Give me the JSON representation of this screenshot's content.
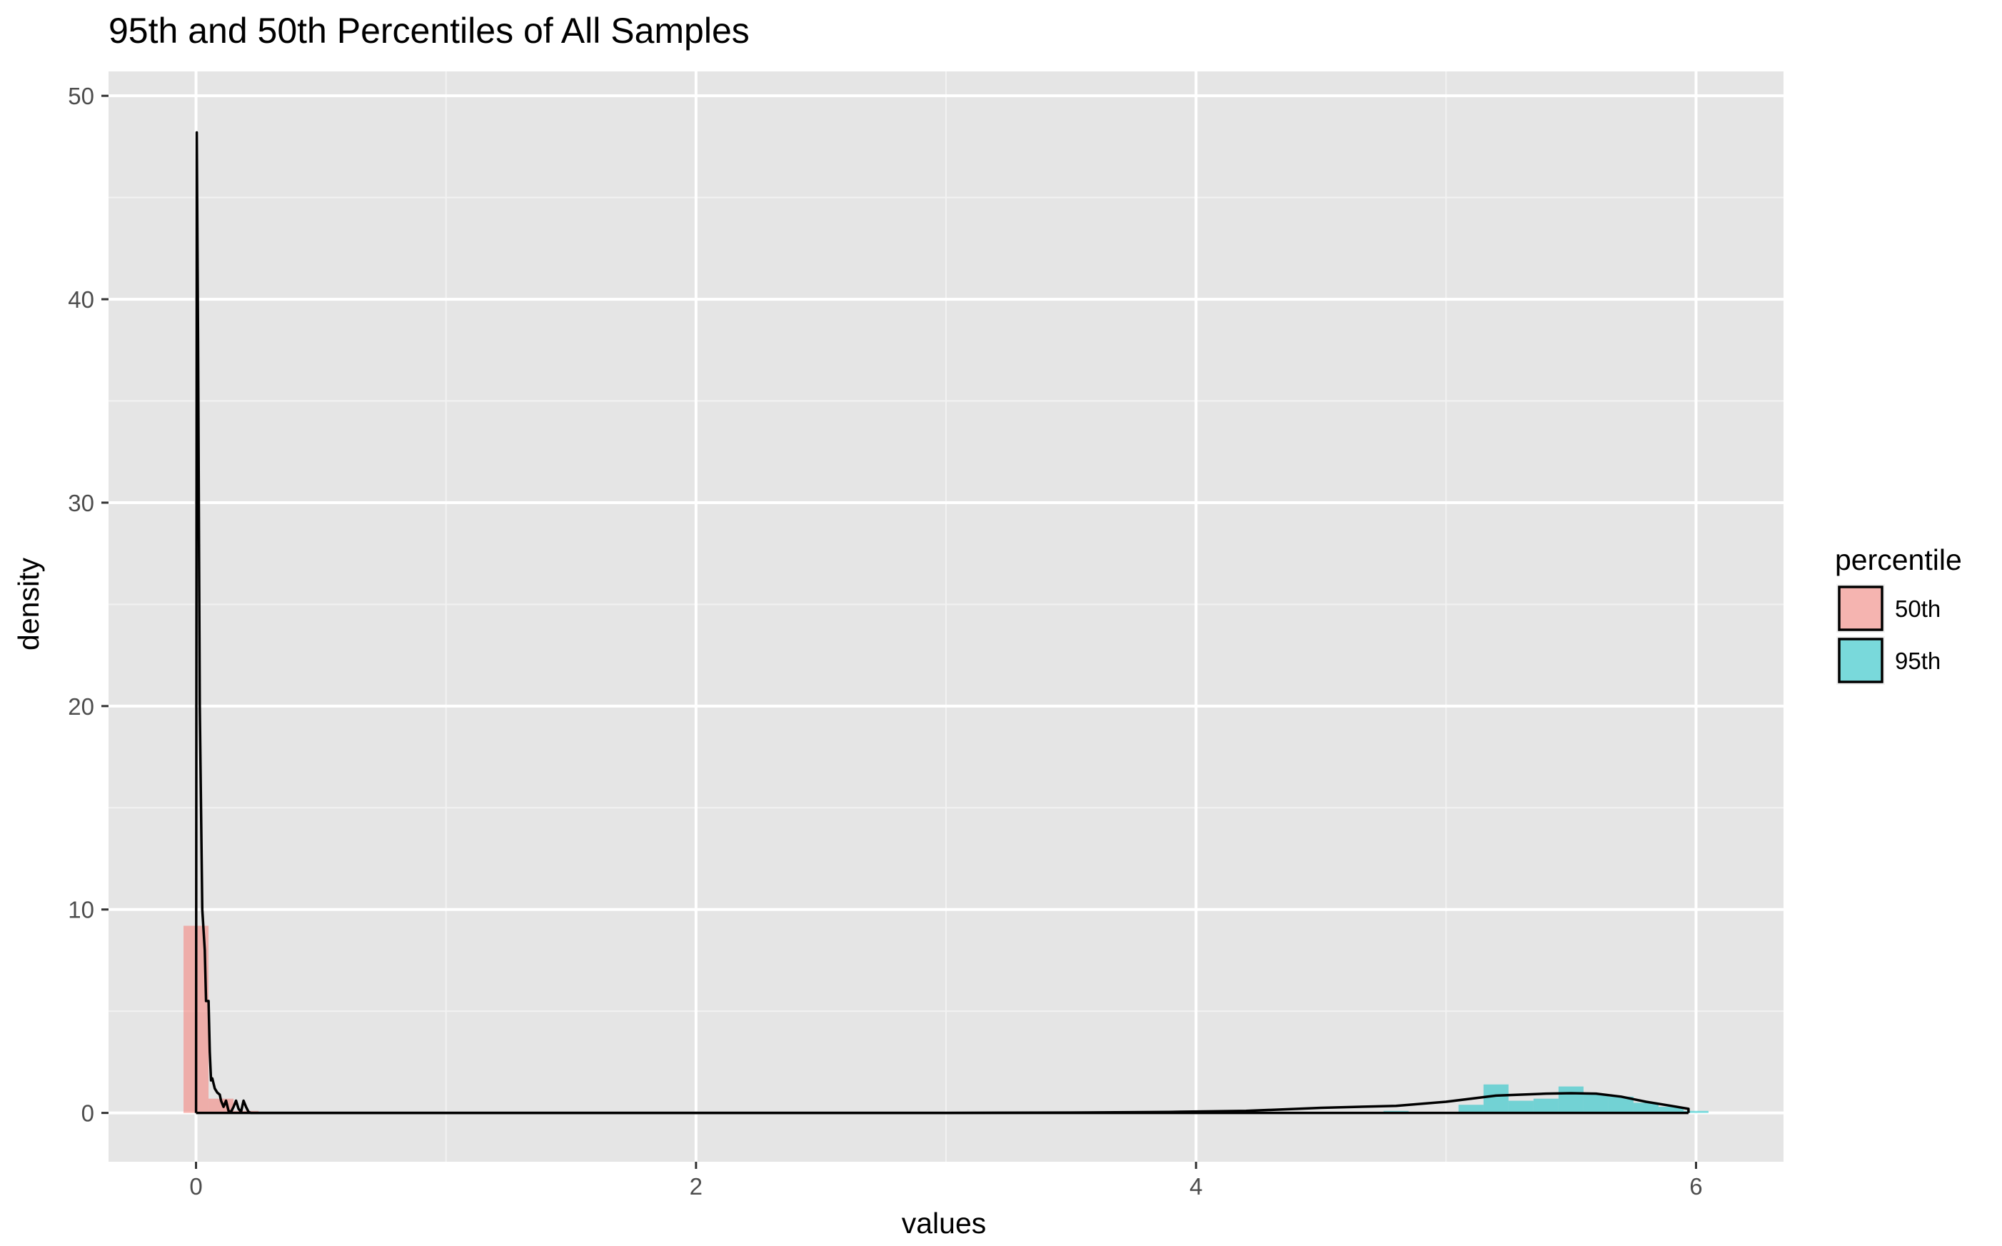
{
  "chart_data": {
    "type": "histogram-density",
    "title": "95th and 50th Percentiles of All Samples",
    "xlabel": "values",
    "ylabel": "density",
    "xlim": [
      -0.35,
      6.35
    ],
    "ylim": [
      -2.4,
      51.2
    ],
    "x_ticks": [
      0,
      2,
      4,
      6
    ],
    "x_tick_labels": [
      "0",
      "2",
      "4",
      "6"
    ],
    "y_ticks": [
      0,
      10,
      20,
      30,
      40,
      50
    ],
    "y_tick_labels": [
      "0",
      "10",
      "20",
      "30",
      "40",
      "50"
    ],
    "grid": true,
    "legend": {
      "title": "percentile",
      "placement": "right",
      "entries": [
        {
          "label": "50th",
          "color": "#F8766D"
        },
        {
          "label": "95th",
          "color": "#00BFC4"
        }
      ]
    },
    "series": [
      {
        "name": "50th",
        "color": "#F8766D",
        "bin_width": 0.1,
        "bins": [
          {
            "x0": -0.05,
            "x1": 0.05,
            "density": 9.2
          },
          {
            "x0": 0.05,
            "x1": 0.15,
            "density": 0.7
          },
          {
            "x0": 0.15,
            "x1": 0.25,
            "density": 0.1
          }
        ]
      },
      {
        "name": "95th",
        "color": "#00BFC4",
        "bin_width": 0.1,
        "bins": [
          {
            "x0": 3.85,
            "x1": 3.95,
            "density": 0.1
          },
          {
            "x0": 4.35,
            "x1": 4.45,
            "density": 0.05
          },
          {
            "x0": 4.75,
            "x1": 4.85,
            "density": 0.1
          },
          {
            "x0": 5.05,
            "x1": 5.15,
            "density": 0.4
          },
          {
            "x0": 5.15,
            "x1": 5.25,
            "density": 1.4
          },
          {
            "x0": 5.25,
            "x1": 5.35,
            "density": 0.6
          },
          {
            "x0": 5.35,
            "x1": 5.45,
            "density": 0.7
          },
          {
            "x0": 5.45,
            "x1": 5.55,
            "density": 1.3
          },
          {
            "x0": 5.55,
            "x1": 5.65,
            "density": 0.9
          },
          {
            "x0": 5.65,
            "x1": 5.75,
            "density": 0.8
          },
          {
            "x0": 5.75,
            "x1": 5.85,
            "density": 0.5
          },
          {
            "x0": 5.85,
            "x1": 5.95,
            "density": 0.3
          },
          {
            "x0": 5.95,
            "x1": 6.05,
            "density": 0.1
          }
        ]
      }
    ],
    "density_curves": [
      {
        "name": "50th",
        "points": [
          [
            0.0,
            0
          ],
          [
            0.003,
            48.2
          ],
          [
            0.008,
            38
          ],
          [
            0.015,
            20
          ],
          [
            0.025,
            10
          ],
          [
            0.035,
            8
          ],
          [
            0.04,
            5.5
          ],
          [
            0.05,
            5.5
          ],
          [
            0.055,
            3
          ],
          [
            0.06,
            1.6
          ],
          [
            0.065,
            1.7
          ],
          [
            0.075,
            1.2
          ],
          [
            0.085,
            1.0
          ],
          [
            0.095,
            0.9
          ],
          [
            0.1,
            0.6
          ],
          [
            0.11,
            0.3
          ],
          [
            0.12,
            0.6
          ],
          [
            0.13,
            0.1
          ],
          [
            0.14,
            0.05
          ],
          [
            0.15,
            0.3
          ],
          [
            0.16,
            0.6
          ],
          [
            0.17,
            0.2
          ],
          [
            0.18,
            0.05
          ],
          [
            0.19,
            0.6
          ],
          [
            0.2,
            0.3
          ],
          [
            0.21,
            0.05
          ],
          [
            0.22,
            0.0
          ],
          [
            5.97,
            0
          ]
        ]
      },
      {
        "name": "95th",
        "points": [
          [
            0.0,
            0
          ],
          [
            1.0,
            0
          ],
          [
            2.0,
            0.0
          ],
          [
            3.0,
            0.0
          ],
          [
            3.5,
            0.02
          ],
          [
            3.9,
            0.05
          ],
          [
            4.2,
            0.1
          ],
          [
            4.5,
            0.25
          ],
          [
            4.8,
            0.35
          ],
          [
            5.0,
            0.55
          ],
          [
            5.2,
            0.85
          ],
          [
            5.4,
            0.95
          ],
          [
            5.5,
            0.97
          ],
          [
            5.6,
            0.95
          ],
          [
            5.7,
            0.8
          ],
          [
            5.8,
            0.55
          ],
          [
            5.9,
            0.35
          ],
          [
            5.97,
            0.2
          ],
          [
            5.97,
            0
          ]
        ]
      }
    ]
  }
}
